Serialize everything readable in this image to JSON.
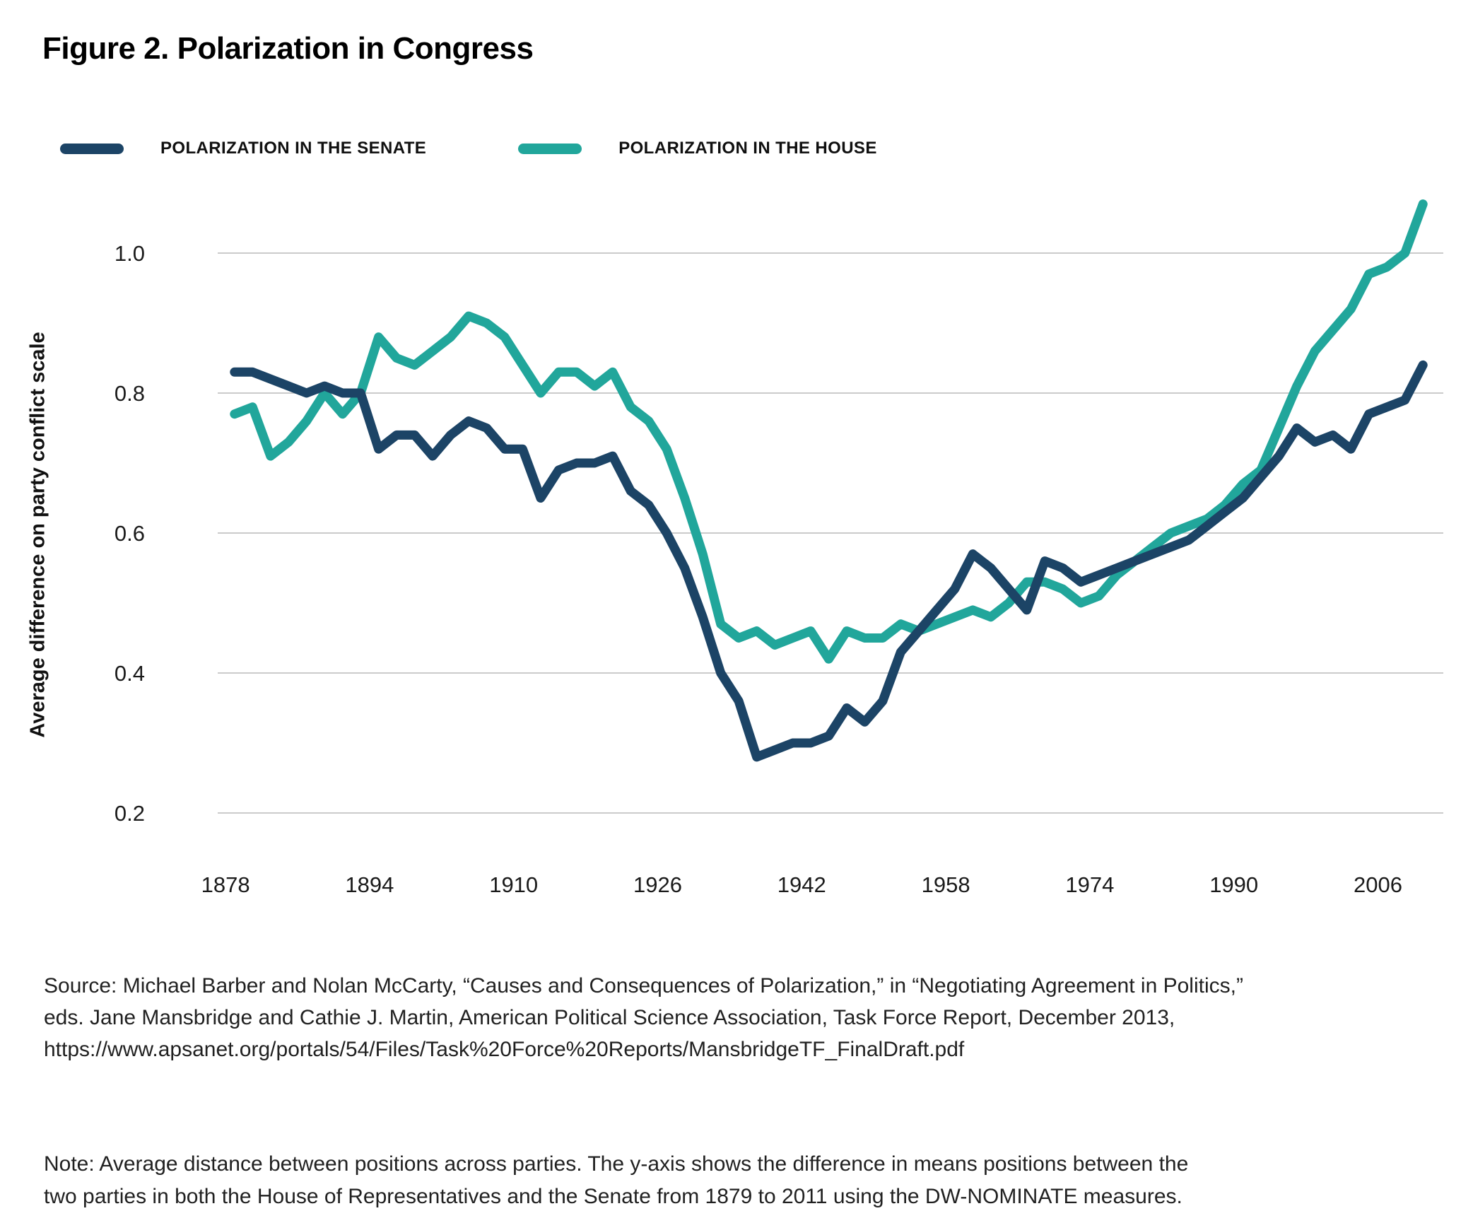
{
  "figure": {
    "title": "Figure 2. Polarization in Congress",
    "source_lines": [
      "Source: Michael Barber and Nolan McCarty, “Causes and Consequences of Polarization,” in “Negotiating Agreement in Politics,”",
      "eds. Jane Mansbridge and Cathie J. Martin, American Political Science Association, Task Force Report, December 2013,",
      "https://www.apsanet.org/portals/54/Files/Task%20Force%20Reports/MansbridgeTF_FinalDraft.pdf"
    ],
    "note_lines": [
      "Note: Average distance between positions across parties. The y-axis shows the difference in means positions between the",
      "two parties in both the House of Representatives and the Senate from 1879 to 2011 using the DW-NOMINATE measures."
    ]
  },
  "chart_data": {
    "type": "line",
    "title": "Figure 2. Polarization in Congress",
    "xlabel": "",
    "ylabel": "Average difference on party conflict scale",
    "grid": "horizontal",
    "legend_position": "top-left",
    "gridline_color": "#cbcbcb",
    "tick_color": "#1a1a1a",
    "xlim": [
      1876.5,
      2013.5
    ],
    "ylim": [
      0.2,
      1.0
    ],
    "x_ticks": [
      1878,
      1894,
      1910,
      1926,
      1942,
      1958,
      1974,
      1990,
      2006
    ],
    "y_ticks": [
      {
        "label": "1.0",
        "value": 1.0
      },
      {
        "label": "0.8",
        "value": 0.8
      },
      {
        "label": "0.6",
        "value": 0.6
      },
      {
        "label": "0.4",
        "value": 0.4
      },
      {
        "label": "0.2",
        "value": 0.2
      }
    ],
    "x": [
      1879,
      1881,
      1883,
      1885,
      1887,
      1889,
      1891,
      1893,
      1895,
      1897,
      1899,
      1901,
      1903,
      1905,
      1907,
      1909,
      1911,
      1913,
      1915,
      1917,
      1919,
      1921,
      1923,
      1925,
      1927,
      1929,
      1931,
      1933,
      1935,
      1937,
      1939,
      1941,
      1943,
      1945,
      1947,
      1949,
      1951,
      1953,
      1955,
      1957,
      1959,
      1961,
      1963,
      1965,
      1967,
      1969,
      1971,
      1973,
      1975,
      1977,
      1979,
      1981,
      1983,
      1985,
      1987,
      1989,
      1991,
      1993,
      1995,
      1997,
      1999,
      2001,
      2003,
      2005,
      2007,
      2009,
      2011
    ],
    "series": [
      {
        "name": "POLARIZATION IN THE HOUSE",
        "color": "#21a69b",
        "values": [
          0.77,
          0.78,
          0.71,
          0.73,
          0.76,
          0.8,
          0.77,
          0.8,
          0.88,
          0.85,
          0.84,
          0.86,
          0.88,
          0.91,
          0.9,
          0.88,
          0.84,
          0.8,
          0.83,
          0.83,
          0.81,
          0.83,
          0.78,
          0.76,
          0.72,
          0.65,
          0.57,
          0.47,
          0.45,
          0.46,
          0.44,
          0.45,
          0.46,
          0.42,
          0.46,
          0.45,
          0.45,
          0.47,
          0.46,
          0.47,
          0.48,
          0.49,
          0.48,
          0.5,
          0.53,
          0.53,
          0.52,
          0.5,
          0.51,
          0.54,
          0.56,
          0.58,
          0.6,
          0.61,
          0.62,
          0.64,
          0.67,
          0.69,
          0.75,
          0.81,
          0.86,
          0.89,
          0.92,
          0.97,
          0.98,
          1.0,
          1.07
        ]
      },
      {
        "name": "POLARIZATION IN THE SENATE",
        "color": "#1c4466",
        "values": [
          0.83,
          0.83,
          0.82,
          0.81,
          0.8,
          0.81,
          0.8,
          0.8,
          0.72,
          0.74,
          0.74,
          0.71,
          0.74,
          0.76,
          0.75,
          0.72,
          0.72,
          0.65,
          0.69,
          0.7,
          0.7,
          0.71,
          0.66,
          0.64,
          0.6,
          0.55,
          0.48,
          0.4,
          0.36,
          0.28,
          0.29,
          0.3,
          0.3,
          0.31,
          0.35,
          0.33,
          0.36,
          0.43,
          0.46,
          0.49,
          0.52,
          0.57,
          0.55,
          0.52,
          0.49,
          0.56,
          0.55,
          0.53,
          0.54,
          0.55,
          0.56,
          0.57,
          0.58,
          0.59,
          0.61,
          0.63,
          0.65,
          0.68,
          0.71,
          0.75,
          0.73,
          0.74,
          0.72,
          0.77,
          0.78,
          0.79,
          0.84
        ]
      }
    ]
  }
}
